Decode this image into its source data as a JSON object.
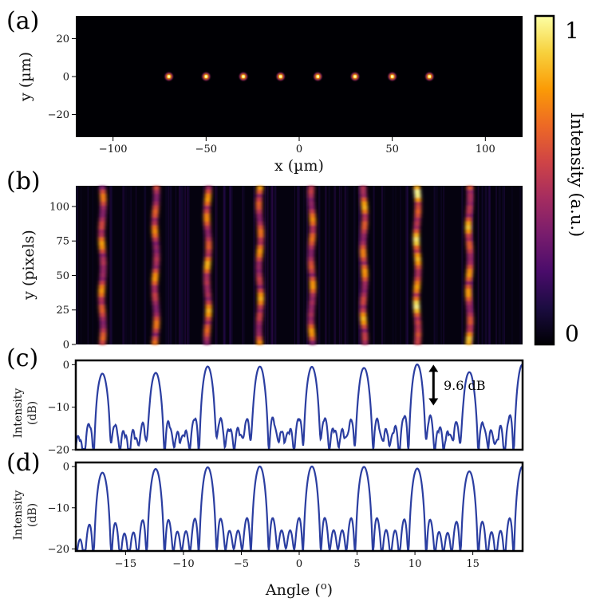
{
  "panel_labels": [
    "(a)",
    "(b)",
    "(c)",
    "(d)"
  ],
  "colorbar": {
    "label": "Intensity (a.u.)",
    "max_label": "1",
    "min_label": "0",
    "colormap": [
      "#000004",
      "#1b0c41",
      "#4a0c6b",
      "#781c6d",
      "#a52c60",
      "#cf4446",
      "#ed6925",
      "#fb9b06",
      "#f7d13d",
      "#fcffa4"
    ]
  },
  "annotation": {
    "text": "9.6 dB"
  },
  "chart_data": [
    {
      "type": "heatmap",
      "panel": "(a)",
      "xlabel": "x (µm)",
      "ylabel": "y (µm)",
      "xlim": [
        -120,
        120
      ],
      "ylim": [
        -32,
        32
      ],
      "xticks": [
        -100,
        -50,
        0,
        50,
        100
      ],
      "yticks": [
        -20,
        0,
        20
      ],
      "xtick_labels": [
        "−100",
        "−50",
        "0",
        "50",
        "100"
      ],
      "ytick_labels": [
        "−20",
        "0",
        "20"
      ],
      "spot_positions_x": [
        -70,
        -50,
        -30,
        -10,
        10,
        30,
        50,
        70
      ],
      "spot_y": 0
    },
    {
      "type": "heatmap",
      "panel": "(b)",
      "ylabel": "y (pixels)",
      "xlim": [
        -19.3,
        19.3
      ],
      "ylim": [
        0,
        115
      ],
      "yticks": [
        0,
        25,
        50,
        75,
        100
      ],
      "ytick_labels": [
        "0",
        "25",
        "50",
        "75",
        "100"
      ],
      "stripe_positions": [
        -17.0,
        -12.4,
        -7.9,
        -3.4,
        1.1,
        5.6,
        10.2,
        14.7
      ],
      "stripe_peak_intensity": [
        0.8,
        0.78,
        0.85,
        0.82,
        0.8,
        0.84,
        1.0,
        0.88
      ]
    },
    {
      "type": "line",
      "panel": "(c)",
      "ylabel": "Intensity (dB)",
      "xlim": [
        -19.3,
        19.3
      ],
      "ylim": [
        -20,
        1
      ],
      "yticks": [
        -20,
        -10,
        0
      ],
      "ytick_labels": [
        "−20",
        "−10",
        "0"
      ],
      "peak_angles": [
        -17.0,
        -12.4,
        -7.9,
        -3.4,
        1.1,
        5.6,
        10.2,
        14.7
      ],
      "peak_values_db": [
        -2.2,
        -2.0,
        -0.5,
        -0.5,
        -0.6,
        -0.8,
        0.0,
        -1.8
      ],
      "arrow_range_db": [
        0,
        -9.6
      ],
      "arrow_angle": 11.6
    },
    {
      "type": "line",
      "panel": "(d)",
      "xlabel": "Angle (o)",
      "ylabel": "Intensity (dB)",
      "xlim": [
        -19.3,
        19.3
      ],
      "ylim": [
        -20.5,
        1
      ],
      "xticks": [
        -15,
        -10,
        -5,
        0,
        5,
        10,
        15
      ],
      "xtick_labels": [
        "−15",
        "−10",
        "−5",
        "0",
        "5",
        "10",
        "15"
      ],
      "yticks": [
        -20,
        -10,
        0
      ],
      "ytick_labels": [
        "−20",
        "−10",
        "0"
      ],
      "peak_angles": [
        -17.0,
        -12.4,
        -7.9,
        -3.4,
        1.1,
        5.6,
        10.2,
        14.7
      ],
      "peak_values_db": [
        -1.5,
        -0.6,
        -0.2,
        0.0,
        0.0,
        -0.1,
        -0.5,
        -1.2
      ]
    }
  ]
}
